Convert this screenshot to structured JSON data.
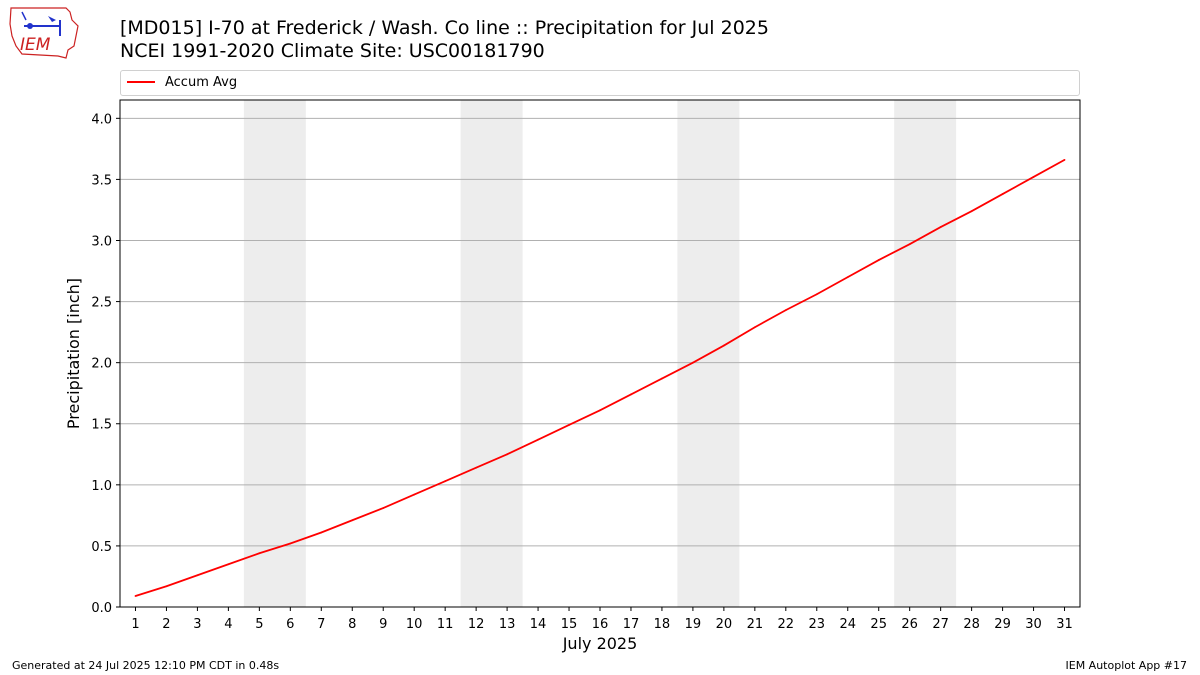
{
  "header": {
    "title_line1": "[MD015] I-70 at Frederick / Wash. Co line :: Precipitation for Jul 2025",
    "title_line2": "NCEI 1991-2020 Climate Site: USC00181790",
    "logo_text": "IEM"
  },
  "legend": {
    "label": "Accum Avg"
  },
  "footer": {
    "left": "Generated at 24 Jul 2025 12:10 PM CDT in 0.48s",
    "right": "IEM Autoplot App #17"
  },
  "colors": {
    "line": "#ff0000",
    "weekend_band": "#ededed",
    "grid": "#b0b0b0",
    "logo": "#cc2222"
  },
  "chart_data": {
    "type": "line",
    "title": "[MD015] I-70 at Frederick / Wash. Co line :: Precipitation for Jul 2025",
    "subtitle": "NCEI 1991-2020 Climate Site: USC00181790",
    "xlabel": "July 2025",
    "ylabel": "Precipitation [inch]",
    "x": [
      1,
      2,
      3,
      4,
      5,
      6,
      7,
      8,
      9,
      10,
      11,
      12,
      13,
      14,
      15,
      16,
      17,
      18,
      19,
      20,
      21,
      22,
      23,
      24,
      25,
      26,
      27,
      28,
      29,
      30,
      31
    ],
    "x_tick_labels": [
      "1",
      "2",
      "3",
      "4",
      "5",
      "6",
      "7",
      "8",
      "9",
      "10",
      "11",
      "12",
      "13",
      "14",
      "15",
      "16",
      "17",
      "18",
      "19",
      "20",
      "21",
      "22",
      "23",
      "24",
      "25",
      "26",
      "27",
      "28",
      "29",
      "30",
      "31"
    ],
    "xlim": [
      0.5,
      31.5
    ],
    "ylim": [
      0,
      4.15
    ],
    "y_ticks": [
      0,
      0.5,
      1.0,
      1.5,
      2.0,
      2.5,
      3.0,
      3.5,
      4.0
    ],
    "y_tick_labels": [
      "0.0",
      "0.5",
      "1.0",
      "1.5",
      "2.0",
      "2.5",
      "3.0",
      "3.5",
      "4.0"
    ],
    "grid": "y",
    "legend_position": "top",
    "weekend_bands": [
      [
        4.5,
        6.5
      ],
      [
        11.5,
        13.5
      ],
      [
        18.5,
        20.5
      ],
      [
        25.5,
        27.5
      ]
    ],
    "series": [
      {
        "name": "Accum Avg",
        "values": [
          0.09,
          0.17,
          0.26,
          0.35,
          0.44,
          0.52,
          0.61,
          0.71,
          0.81,
          0.92,
          1.03,
          1.14,
          1.25,
          1.37,
          1.49,
          1.61,
          1.74,
          1.87,
          2.0,
          2.14,
          2.29,
          2.43,
          2.56,
          2.7,
          2.84,
          2.97,
          3.11,
          3.24,
          3.38,
          3.52,
          3.66
        ]
      }
    ]
  }
}
